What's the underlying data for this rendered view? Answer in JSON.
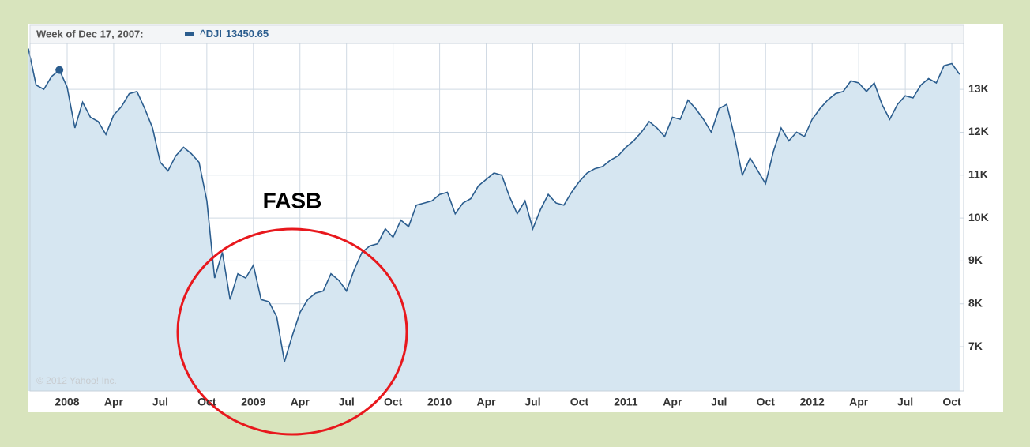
{
  "chart_data": {
    "type": "line",
    "header": "Week of Dec 17, 2007:",
    "hover": {
      "index": 4,
      "value": 13450.65
    },
    "annotation": "FASB",
    "watermark": "© 2012 Yahoo! Inc.",
    "categories": [
      null,
      null,
      null,
      null,
      null,
      "2008",
      null,
      null,
      null,
      null,
      null,
      "Apr",
      null,
      null,
      null,
      null,
      null,
      "Jul",
      null,
      null,
      null,
      null,
      null,
      "Oct",
      null,
      null,
      null,
      null,
      null,
      "2009",
      null,
      null,
      null,
      null,
      null,
      "Apr",
      null,
      null,
      null,
      null,
      null,
      "Jul",
      null,
      null,
      null,
      null,
      null,
      "Oct",
      null,
      null,
      null,
      null,
      null,
      "2010",
      null,
      null,
      null,
      null,
      null,
      "Apr",
      null,
      null,
      null,
      null,
      null,
      "Jul",
      null,
      null,
      null,
      null,
      null,
      "Oct",
      null,
      null,
      null,
      null,
      null,
      "2011",
      null,
      null,
      null,
      null,
      null,
      "Apr",
      null,
      null,
      null,
      null,
      null,
      "Jul",
      null,
      null,
      null,
      null,
      null,
      "Oct",
      null,
      null,
      null,
      null,
      null,
      "2012",
      null,
      null,
      null,
      null,
      null,
      "Apr",
      null,
      null,
      null,
      null,
      null,
      "Jul",
      null,
      null,
      null,
      null,
      null,
      "Oct",
      null
    ],
    "series": [
      {
        "name": "^DJI",
        "color": "#2b5d8e",
        "fill": "#d6e6f1",
        "values": [
          13950,
          13100,
          13000,
          13300,
          13450.65,
          13050,
          12100,
          12700,
          12350,
          12250,
          11950,
          12400,
          12600,
          12900,
          12950,
          12550,
          12100,
          11300,
          11100,
          11450,
          11650,
          11500,
          11300,
          10400,
          8600,
          9200,
          8100,
          8700,
          8600,
          8900,
          8100,
          8050,
          7700,
          6650,
          7250,
          7800,
          8100,
          8250,
          8300,
          8700,
          8550,
          8300,
          8800,
          9200,
          9350,
          9400,
          9750,
          9550,
          9950,
          9800,
          10300,
          10350,
          10400,
          10550,
          10600,
          10100,
          10350,
          10450,
          10750,
          10900,
          11050,
          11000,
          10500,
          10100,
          10400,
          9750,
          10200,
          10550,
          10350,
          10300,
          10600,
          10850,
          11050,
          11150,
          11200,
          11350,
          11450,
          11650,
          11800,
          12000,
          12250,
          12100,
          11900,
          12350,
          12300,
          12750,
          12550,
          12300,
          12000,
          12550,
          12650,
          11900,
          11000,
          11400,
          11100,
          10800,
          11550,
          12100,
          11800,
          12000,
          11900,
          12300,
          12550,
          12750,
          12900,
          12950,
          13200,
          13150,
          12950,
          13150,
          12650,
          12300,
          12650,
          12850,
          12800,
          13100,
          13250,
          13150,
          13550,
          13600,
          13350
        ]
      }
    ],
    "ylim": [
      5970,
      14070
    ],
    "yticks": [
      {
        "value": 7000,
        "label": "7K"
      },
      {
        "value": 8000,
        "label": "8K"
      },
      {
        "value": 9000,
        "label": "9K"
      },
      {
        "value": 10000,
        "label": "10K"
      },
      {
        "value": 11000,
        "label": "11K"
      },
      {
        "value": 12000,
        "label": "12K"
      },
      {
        "value": 13000,
        "label": "13K"
      }
    ],
    "grid": true
  }
}
